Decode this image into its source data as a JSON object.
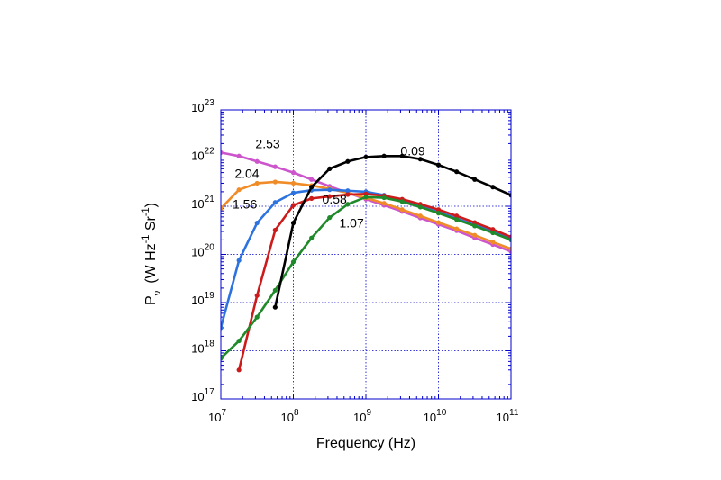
{
  "chart_data": {
    "type": "line",
    "title": "",
    "xlabel": "Frequency (Hz)",
    "ylabel": {
      "base": "P",
      "sub": "ν",
      "units_open": "(W Hz",
      "exp1": "-1",
      "units_mid": " Sr",
      "exp2": "-1",
      "units_close": ")"
    },
    "x_scale": "log",
    "y_scale": "log",
    "xlim": [
      10000000,
      100000000000
    ],
    "ylim": [
      1e+17,
      1e+23
    ],
    "grid": true,
    "legend": "none",
    "x_ticks": [
      {
        "base": "10",
        "exp": "7",
        "value": 10000000.0
      },
      {
        "base": "10",
        "exp": "8",
        "value": 100000000.0
      },
      {
        "base": "10",
        "exp": "9",
        "value": 1000000000.0
      },
      {
        "base": "10",
        "exp": "10",
        "value": 10000000000.0
      },
      {
        "base": "10",
        "exp": "11",
        "value": 100000000000.0
      }
    ],
    "y_ticks": [
      {
        "base": "10",
        "exp": "17",
        "value": 1e+17
      },
      {
        "base": "10",
        "exp": "18",
        "value": 1e+18
      },
      {
        "base": "10",
        "exp": "19",
        "value": 1e+19
      },
      {
        "base": "10",
        "exp": "20",
        "value": 1e+20
      },
      {
        "base": "10",
        "exp": "21",
        "value": 1e+21
      },
      {
        "base": "10",
        "exp": "22",
        "value": 1e+22
      },
      {
        "base": "10",
        "exp": "23",
        "value": 1e+23
      }
    ],
    "series": [
      {
        "name": "2.53",
        "color": "#cc55cc",
        "x": [
          10000000.0,
          17800000.0,
          31600000.0,
          56200000.0,
          100000000.0,
          178000000.0,
          316000000.0,
          562000000.0,
          1000000000.0,
          1780000000.0,
          3160000000.0,
          5620000000.0,
          10000000000.0,
          17800000000.0,
          31600000000.0,
          56200000000.0,
          100000000000.0
        ],
        "y": [
          1.3e+22,
          1.1e+22,
          8.5e+21,
          6.6e+21,
          5e+21,
          3.6e+21,
          2.6e+21,
          1.9e+21,
          1.4e+21,
          1.05e+21,
          7.8e+20,
          5.7e+20,
          4.2e+20,
          3.1e+20,
          2.2e+20,
          1.6e+20,
          1.15e+20
        ]
      },
      {
        "name": "2.04",
        "color": "#f08c28",
        "x": [
          10000000.0,
          17800000.0,
          31600000.0,
          56200000.0,
          100000000.0,
          178000000.0,
          316000000.0,
          562000000.0,
          1000000000.0,
          1780000000.0,
          3160000000.0,
          5620000000.0,
          10000000000.0,
          17800000000.0,
          31600000000.0,
          56200000000.0,
          100000000000.0
        ],
        "y": [
          9e+20,
          2.2e+21,
          3e+21,
          3.2e+21,
          3e+21,
          2.7e+21,
          2.3e+21,
          1.9e+21,
          1.5e+21,
          1.15e+21,
          8.5e+20,
          6.3e+20,
          4.6e+20,
          3.4e+20,
          2.5e+20,
          1.8e+20,
          1.3e+20
        ]
      },
      {
        "name": "1.56",
        "color": "#2d73e0",
        "x": [
          10000000.0,
          17800000.0,
          31600000.0,
          56200000.0,
          100000000.0,
          178000000.0,
          316000000.0,
          562000000.0,
          1000000000.0,
          1780000000.0,
          3160000000.0,
          5620000000.0,
          10000000000.0,
          17800000000.0,
          31600000000.0,
          56200000000.0,
          100000000000.0
        ],
        "y": [
          3e+18,
          7.5e+19,
          4.5e+20,
          1.2e+21,
          1.9e+21,
          2.15e+21,
          2.2e+21,
          2.1e+21,
          2e+21,
          1.7e+21,
          1.3e+21,
          1e+21,
          7.6e+20,
          5.6e+20,
          4.1e+20,
          3e+20,
          2.1e+20
        ]
      },
      {
        "name": "0.58",
        "color": "#cc1b1b",
        "x": [
          17800000.0,
          31600000.0,
          56200000.0,
          100000000.0,
          178000000.0,
          316000000.0,
          562000000.0,
          1000000000.0,
          1780000000.0,
          3160000000.0,
          5620000000.0,
          10000000000.0,
          17800000000.0,
          31600000000.0,
          56200000000.0,
          100000000000.0
        ],
        "y": [
          4e+17,
          1.4e+19,
          3.2e+20,
          1.05e+21,
          1.45e+21,
          1.6e+21,
          1.75e+21,
          1.8e+21,
          1.65e+21,
          1.4e+21,
          1.1e+21,
          8.5e+20,
          6.3e+20,
          4.6e+20,
          3.3e+20,
          2.3e+20
        ]
      },
      {
        "name": "1.07",
        "color": "#1f8a2a",
        "x": [
          10000000.0,
          17800000.0,
          31600000.0,
          56200000.0,
          100000000.0,
          178000000.0,
          316000000.0,
          562000000.0,
          1000000000.0,
          1780000000.0,
          3160000000.0,
          5620000000.0,
          10000000000.0,
          17800000000.0,
          31600000000.0,
          56200000000.0,
          100000000000.0
        ],
        "y": [
          7e+17,
          1.6e+18,
          5e+18,
          1.8e+19,
          7e+19,
          2.2e+20,
          5.8e+20,
          1.1e+21,
          1.55e+21,
          1.5e+21,
          1.25e+21,
          9.6e+20,
          7.2e+20,
          5.3e+20,
          3.9e+20,
          2.8e+20,
          2e+20
        ]
      },
      {
        "name": "0.09",
        "color": "#000000",
        "x": [
          56200000.0,
          100000000.0,
          178000000.0,
          316000000.0,
          562000000.0,
          1000000000.0,
          1780000000.0,
          3160000000.0,
          5620000000.0,
          10000000000.0,
          17800000000.0,
          31600000000.0,
          56200000000.0,
          100000000000.0
        ],
        "y": [
          8e+18,
          4.5e+20,
          2.5e+21,
          6e+21,
          8.5e+21,
          1.05e+22,
          1.1e+22,
          1.1e+22,
          9.5e+21,
          7.2e+21,
          5.2e+21,
          3.6e+21,
          2.5e+21,
          1.7e+21
        ]
      }
    ],
    "annotations": [
      {
        "text": "2.53",
        "color": "#cc55cc",
        "x": 30000000.0,
        "y": 1.6e+22
      },
      {
        "text": "2.04",
        "color": "#f08c28",
        "x": 15500000.0,
        "y": 3.9e+21
      },
      {
        "text": "1.56",
        "color": "#2d73e0",
        "x": 14500000.0,
        "y": 9e+20
      },
      {
        "text": "0.58",
        "color": "#cc1b1b",
        "x": 250000000.0,
        "y": 1.15e+21
      },
      {
        "text": "1.07",
        "color": "#1f8a2a",
        "x": 430000000.0,
        "y": 3.6e+20
      },
      {
        "text": "0.09",
        "color": "#000000",
        "x": 3000000000.0,
        "y": 1.15e+22
      }
    ]
  }
}
